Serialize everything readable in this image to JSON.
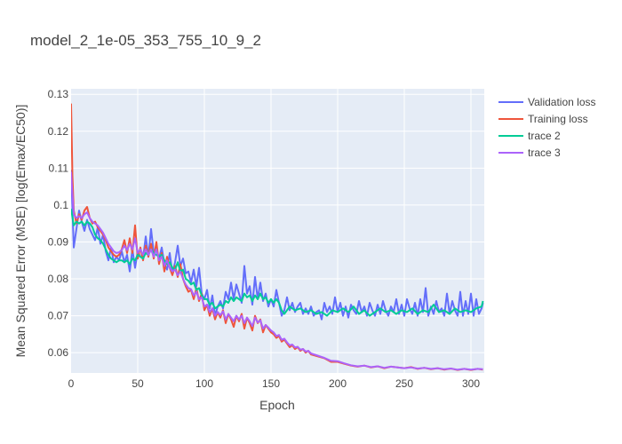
{
  "chart_data": {
    "type": "line",
    "title": "model_2_1e-05_353_755_10_9_2",
    "xlabel": "Epoch",
    "ylabel": "Mean Squared Error (MSE) [log(Emax/EC50)]",
    "xlim": [
      0,
      310
    ],
    "ylim": [
      0.0545,
      0.1315
    ],
    "x_ticks": [
      0,
      50,
      100,
      150,
      200,
      250,
      300
    ],
    "x_tick_labels": [
      "0",
      "50",
      "100",
      "150",
      "200",
      "250",
      "300"
    ],
    "y_ticks": [
      0.06,
      0.07,
      0.08,
      0.09,
      0.1,
      0.11,
      0.12,
      0.13
    ],
    "y_tick_labels": [
      "0.06",
      "0.07",
      "0.08",
      "0.09",
      "0.1",
      "0.11",
      "0.12",
      "0.13"
    ],
    "grid": true,
    "legend_position": "top-right",
    "series": [
      {
        "name": "Validation loss",
        "color": "#636efa",
        "x": [
          0,
          2,
          4,
          6,
          8,
          10,
          12,
          14,
          16,
          18,
          20,
          22,
          24,
          26,
          28,
          30,
          32,
          34,
          36,
          38,
          40,
          42,
          44,
          46,
          48,
          50,
          52,
          54,
          56,
          58,
          60,
          62,
          64,
          66,
          68,
          70,
          72,
          74,
          76,
          78,
          80,
          82,
          84,
          86,
          88,
          90,
          92,
          94,
          96,
          98,
          100,
          102,
          104,
          106,
          108,
          110,
          112,
          114,
          116,
          118,
          120,
          122,
          124,
          126,
          128,
          130,
          132,
          134,
          136,
          138,
          140,
          142,
          144,
          146,
          148,
          150,
          152,
          154,
          156,
          158,
          160,
          162,
          164,
          166,
          168,
          170,
          172,
          174,
          176,
          178,
          180,
          182,
          184,
          186,
          188,
          190,
          192,
          194,
          196,
          198,
          200,
          202,
          204,
          206,
          208,
          210,
          212,
          214,
          216,
          218,
          220,
          222,
          224,
          226,
          228,
          230,
          232,
          234,
          236,
          238,
          240,
          242,
          244,
          246,
          248,
          250,
          252,
          254,
          256,
          258,
          260,
          262,
          264,
          266,
          268,
          270,
          272,
          274,
          276,
          278,
          280,
          282,
          284,
          286,
          288,
          290,
          292,
          294,
          296,
          298,
          300,
          302,
          304,
          306,
          308,
          309
        ],
        "y": [
          0.1095,
          0.0885,
          0.0935,
          0.0985,
          0.0955,
          0.093,
          0.096,
          0.0935,
          0.092,
          0.0905,
          0.094,
          0.0895,
          0.092,
          0.0875,
          0.085,
          0.0885,
          0.0845,
          0.086,
          0.085,
          0.0875,
          0.0845,
          0.0865,
          0.082,
          0.088,
          0.083,
          0.0875,
          0.086,
          0.0855,
          0.0915,
          0.086,
          0.0935,
          0.087,
          0.088,
          0.0855,
          0.0885,
          0.084,
          0.0825,
          0.087,
          0.0815,
          0.0845,
          0.089,
          0.0835,
          0.0855,
          0.0815,
          0.082,
          0.079,
          0.0825,
          0.078,
          0.083,
          0.076,
          0.0745,
          0.077,
          0.072,
          0.0755,
          0.07,
          0.0725,
          0.074,
          0.072,
          0.0765,
          0.0745,
          0.079,
          0.0745,
          0.0785,
          0.076,
          0.0735,
          0.0835,
          0.076,
          0.078,
          0.073,
          0.0805,
          0.0745,
          0.079,
          0.074,
          0.076,
          0.0725,
          0.0745,
          0.0725,
          0.077,
          0.0735,
          0.07,
          0.0715,
          0.075,
          0.0715,
          0.0735,
          0.071,
          0.0725,
          0.0735,
          0.0705,
          0.072,
          0.0705,
          0.0725,
          0.07,
          0.071,
          0.0715,
          0.069,
          0.0735,
          0.071,
          0.0725,
          0.0705,
          0.075,
          0.071,
          0.0735,
          0.07,
          0.0725,
          0.0695,
          0.073,
          0.0715,
          0.0705,
          0.074,
          0.071,
          0.0725,
          0.07,
          0.0735,
          0.0715,
          0.07,
          0.073,
          0.0705,
          0.074,
          0.0715,
          0.07,
          0.0725,
          0.071,
          0.0745,
          0.0705,
          0.073,
          0.07,
          0.0745,
          0.072,
          0.0705,
          0.0735,
          0.07,
          0.0745,
          0.071,
          0.0775,
          0.07,
          0.0725,
          0.0705,
          0.074,
          0.071,
          0.072,
          0.07,
          0.076,
          0.0705,
          0.074,
          0.0715,
          0.07,
          0.0765,
          0.07,
          0.074,
          0.0705,
          0.076,
          0.07,
          0.0745,
          0.0705,
          0.072,
          0.0735
        ]
      },
      {
        "name": "Training loss",
        "color": "#ef553b",
        "x": [
          0,
          1,
          2,
          4,
          6,
          8,
          10,
          12,
          14,
          16,
          18,
          20,
          22,
          24,
          26,
          28,
          30,
          32,
          34,
          36,
          38,
          40,
          42,
          44,
          46,
          48,
          50,
          52,
          54,
          56,
          58,
          60,
          62,
          64,
          66,
          68,
          70,
          72,
          74,
          76,
          78,
          80,
          82,
          84,
          86,
          88,
          90,
          92,
          94,
          96,
          98,
          100,
          102,
          104,
          106,
          108,
          110,
          112,
          114,
          116,
          118,
          120,
          122,
          124,
          126,
          128,
          130,
          132,
          134,
          136,
          138,
          140,
          142,
          144,
          146,
          148,
          150,
          152,
          154,
          156,
          158,
          160,
          162,
          164,
          166,
          168,
          170,
          172,
          174,
          176,
          178,
          180,
          185,
          190,
          195,
          200,
          205,
          210,
          215,
          220,
          225,
          230,
          235,
          240,
          245,
          250,
          255,
          260,
          265,
          270,
          275,
          280,
          285,
          290,
          295,
          300,
          305,
          309
        ],
        "y": [
          0.1275,
          0.108,
          0.0985,
          0.095,
          0.0975,
          0.096,
          0.0985,
          0.0995,
          0.0965,
          0.095,
          0.0955,
          0.094,
          0.093,
          0.092,
          0.0905,
          0.0885,
          0.0875,
          0.0865,
          0.086,
          0.0865,
          0.088,
          0.0905,
          0.087,
          0.091,
          0.087,
          0.0945,
          0.0855,
          0.0885,
          0.085,
          0.089,
          0.086,
          0.0895,
          0.0855,
          0.09,
          0.084,
          0.087,
          0.082,
          0.086,
          0.083,
          0.081,
          0.0835,
          0.0805,
          0.084,
          0.08,
          0.078,
          0.0765,
          0.077,
          0.0745,
          0.0775,
          0.074,
          0.076,
          0.0715,
          0.073,
          0.07,
          0.072,
          0.069,
          0.071,
          0.0695,
          0.0715,
          0.068,
          0.0705,
          0.069,
          0.067,
          0.07,
          0.0685,
          0.0705,
          0.0665,
          0.0695,
          0.068,
          0.066,
          0.07,
          0.068,
          0.069,
          0.0655,
          0.0675,
          0.0665,
          0.0655,
          0.065,
          0.064,
          0.0645,
          0.063,
          0.0635,
          0.0625,
          0.0615,
          0.062,
          0.061,
          0.0615,
          0.0605,
          0.061,
          0.06,
          0.0605,
          0.0595,
          0.059,
          0.0585,
          0.0575,
          0.0575,
          0.057,
          0.0565,
          0.0562,
          0.0565,
          0.056,
          0.0563,
          0.0558,
          0.0562,
          0.056,
          0.0558,
          0.0561,
          0.0556,
          0.0559,
          0.0555,
          0.0558,
          0.0554,
          0.0557,
          0.0553,
          0.0556,
          0.0553,
          0.0556,
          0.0554
        ]
      },
      {
        "name": "trace 2",
        "color": "#00cc96",
        "x": [
          0,
          2,
          4,
          6,
          8,
          10,
          12,
          14,
          16,
          18,
          20,
          22,
          24,
          26,
          28,
          30,
          32,
          34,
          36,
          38,
          40,
          42,
          44,
          46,
          48,
          50,
          52,
          54,
          56,
          58,
          60,
          62,
          64,
          66,
          68,
          70,
          72,
          74,
          76,
          78,
          80,
          82,
          84,
          86,
          88,
          90,
          92,
          94,
          96,
          98,
          100,
          102,
          104,
          106,
          108,
          110,
          112,
          114,
          116,
          118,
          120,
          122,
          124,
          126,
          128,
          130,
          132,
          134,
          136,
          138,
          140,
          142,
          144,
          146,
          148,
          150,
          152,
          154,
          156,
          158,
          160,
          164,
          168,
          172,
          176,
          180,
          184,
          188,
          192,
          196,
          200,
          204,
          208,
          212,
          216,
          220,
          224,
          228,
          232,
          236,
          240,
          244,
          248,
          252,
          256,
          260,
          264,
          268,
          272,
          276,
          280,
          284,
          288,
          292,
          296,
          300,
          304,
          308,
          309
        ],
        "y": [
          0.099,
          0.0945,
          0.0955,
          0.095,
          0.0955,
          0.0945,
          0.0955,
          0.095,
          0.094,
          0.092,
          0.091,
          0.0905,
          0.0895,
          0.088,
          0.0865,
          0.0855,
          0.085,
          0.0845,
          0.085,
          0.085,
          0.0845,
          0.085,
          0.084,
          0.0855,
          0.085,
          0.0865,
          0.086,
          0.0855,
          0.087,
          0.0865,
          0.088,
          0.087,
          0.0865,
          0.086,
          0.0865,
          0.085,
          0.084,
          0.0845,
          0.083,
          0.0825,
          0.0845,
          0.082,
          0.0825,
          0.08,
          0.0795,
          0.0785,
          0.079,
          0.077,
          0.0775,
          0.0755,
          0.0745,
          0.0745,
          0.073,
          0.0735,
          0.072,
          0.0725,
          0.073,
          0.0725,
          0.074,
          0.0735,
          0.075,
          0.074,
          0.075,
          0.0745,
          0.074,
          0.076,
          0.075,
          0.0755,
          0.074,
          0.0755,
          0.0745,
          0.076,
          0.0745,
          0.075,
          0.0735,
          0.0745,
          0.0735,
          0.0745,
          0.0735,
          0.0715,
          0.0705,
          0.0725,
          0.0715,
          0.072,
          0.071,
          0.0715,
          0.0705,
          0.071,
          0.07,
          0.0715,
          0.071,
          0.072,
          0.071,
          0.0725,
          0.0705,
          0.0715,
          0.07,
          0.071,
          0.072,
          0.071,
          0.0715,
          0.0705,
          0.0715,
          0.071,
          0.072,
          0.0705,
          0.0715,
          0.071,
          0.073,
          0.071,
          0.0715,
          0.0705,
          0.072,
          0.071,
          0.0715,
          0.071,
          0.072,
          0.0725,
          0.074
        ]
      },
      {
        "name": "trace 3",
        "color": "#ab63fa",
        "x": [
          0,
          1,
          2,
          4,
          6,
          8,
          10,
          12,
          14,
          16,
          18,
          20,
          22,
          24,
          26,
          28,
          30,
          32,
          34,
          36,
          38,
          40,
          42,
          44,
          46,
          48,
          50,
          52,
          54,
          56,
          58,
          60,
          62,
          64,
          66,
          68,
          70,
          72,
          74,
          76,
          78,
          80,
          82,
          84,
          86,
          88,
          90,
          92,
          94,
          96,
          98,
          100,
          102,
          104,
          106,
          108,
          110,
          112,
          114,
          116,
          118,
          120,
          122,
          124,
          126,
          128,
          130,
          132,
          134,
          136,
          138,
          140,
          142,
          144,
          146,
          148,
          150,
          152,
          154,
          156,
          158,
          160,
          162,
          164,
          166,
          168,
          170,
          172,
          174,
          176,
          178,
          180,
          185,
          190,
          195,
          200,
          205,
          210,
          215,
          220,
          225,
          230,
          235,
          240,
          245,
          250,
          255,
          260,
          265,
          270,
          275,
          280,
          285,
          290,
          295,
          300,
          305,
          309
        ],
        "y": [
          0.109,
          0.103,
          0.0975,
          0.0965,
          0.097,
          0.0965,
          0.0975,
          0.098,
          0.0965,
          0.0955,
          0.095,
          0.0945,
          0.0935,
          0.0925,
          0.091,
          0.0895,
          0.0885,
          0.0875,
          0.087,
          0.0872,
          0.0878,
          0.089,
          0.0878,
          0.0895,
          0.088,
          0.091,
          0.087,
          0.088,
          0.0865,
          0.088,
          0.0865,
          0.088,
          0.086,
          0.088,
          0.085,
          0.086,
          0.0835,
          0.085,
          0.083,
          0.082,
          0.0825,
          0.081,
          0.082,
          0.08,
          0.0785,
          0.0775,
          0.0772,
          0.0755,
          0.0765,
          0.0745,
          0.075,
          0.0725,
          0.073,
          0.071,
          0.072,
          0.07,
          0.071,
          0.0702,
          0.0712,
          0.069,
          0.0705,
          0.0695,
          0.0685,
          0.07,
          0.069,
          0.07,
          0.068,
          0.0695,
          0.0685,
          0.0672,
          0.0695,
          0.0682,
          0.0688,
          0.0665,
          0.0675,
          0.0668,
          0.066,
          0.0655,
          0.0645,
          0.0648,
          0.0635,
          0.0638,
          0.0628,
          0.062,
          0.0622,
          0.0614,
          0.0616,
          0.0608,
          0.061,
          0.0603,
          0.0605,
          0.0598,
          0.0592,
          0.0586,
          0.0578,
          0.0577,
          0.0571,
          0.0566,
          0.0563,
          0.0565,
          0.0561,
          0.0563,
          0.0559,
          0.0562,
          0.056,
          0.0558,
          0.056,
          0.0557,
          0.0559,
          0.0556,
          0.0558,
          0.0555,
          0.0557,
          0.0554,
          0.0556,
          0.0554,
          0.0556,
          0.0555
        ]
      }
    ]
  }
}
